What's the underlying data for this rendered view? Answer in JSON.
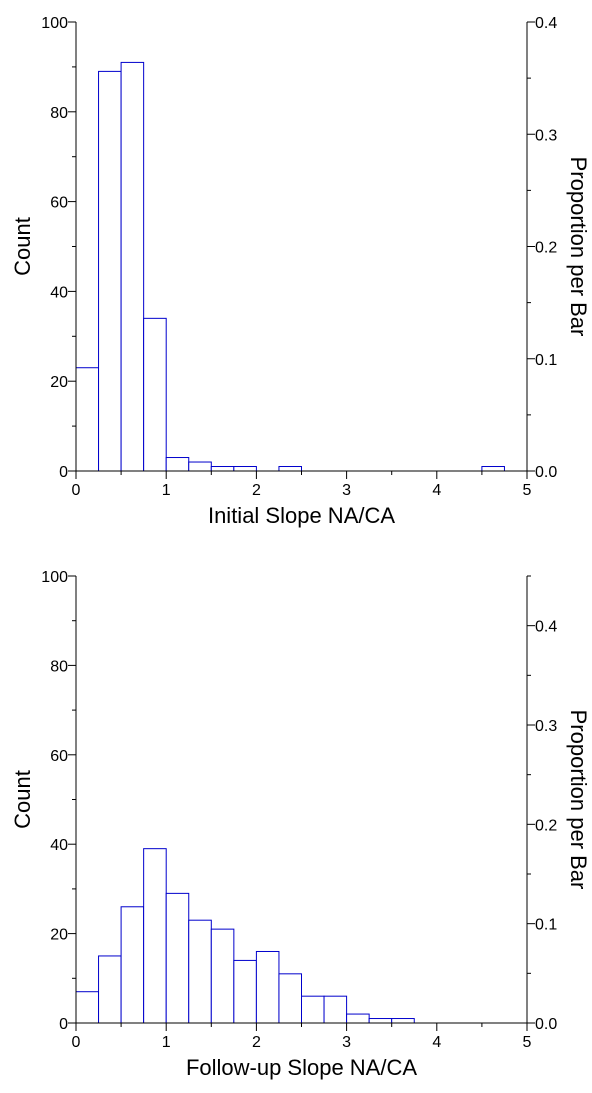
{
  "chart_data": [
    {
      "type": "bar",
      "xlabel": "Initial Slope NA/CA",
      "ylabel": "Count",
      "y2label": "Proportion per Bar",
      "bin_width": 0.25,
      "bin_starts": [
        0,
        0.25,
        0.5,
        0.75,
        1.0,
        1.25,
        1.5,
        1.75,
        2.0,
        2.25,
        2.5,
        2.75,
        3.0,
        3.25,
        3.5,
        3.75,
        4.0,
        4.25,
        4.5
      ],
      "values": [
        23,
        89,
        91,
        34,
        3,
        2,
        1,
        1,
        0,
        1,
        0,
        0,
        0,
        0,
        0,
        0,
        0,
        0,
        1
      ],
      "xlim": [
        0,
        5
      ],
      "ylim": [
        0,
        100
      ],
      "y2lim": [
        0,
        0.4
      ],
      "xticks": [
        "0",
        "1",
        "2",
        "3",
        "4",
        "5"
      ],
      "yticks": [
        "0",
        "20",
        "40",
        "60",
        "80",
        "100"
      ],
      "y2ticks": [
        "0.0",
        "0.1",
        "0.2",
        "0.3",
        "0.4"
      ],
      "bar_color": "#0000cc"
    },
    {
      "type": "bar",
      "xlabel": "Follow-up Slope NA/CA",
      "ylabel": "Count",
      "y2label": "Proportion per Bar",
      "bin_width": 0.25,
      "bin_starts": [
        0,
        0.25,
        0.5,
        0.75,
        1.0,
        1.25,
        1.5,
        1.75,
        2.0,
        2.25,
        2.5,
        2.75,
        3.0,
        3.25,
        3.5
      ],
      "values": [
        7,
        15,
        26,
        39,
        29,
        23,
        21,
        14,
        16,
        11,
        6,
        6,
        2,
        1,
        1
      ],
      "xlim": [
        0,
        5
      ],
      "ylim": [
        0,
        100
      ],
      "y2lim": [
        0,
        0.45
      ],
      "xticks": [
        "0",
        "1",
        "2",
        "3",
        "4",
        "5"
      ],
      "yticks": [
        "0",
        "20",
        "40",
        "60",
        "80",
        "100"
      ],
      "y2ticks": [
        "0.0",
        "0.1",
        "0.2",
        "0.3",
        "0.4"
      ],
      "bar_color": "#0000cc"
    }
  ]
}
